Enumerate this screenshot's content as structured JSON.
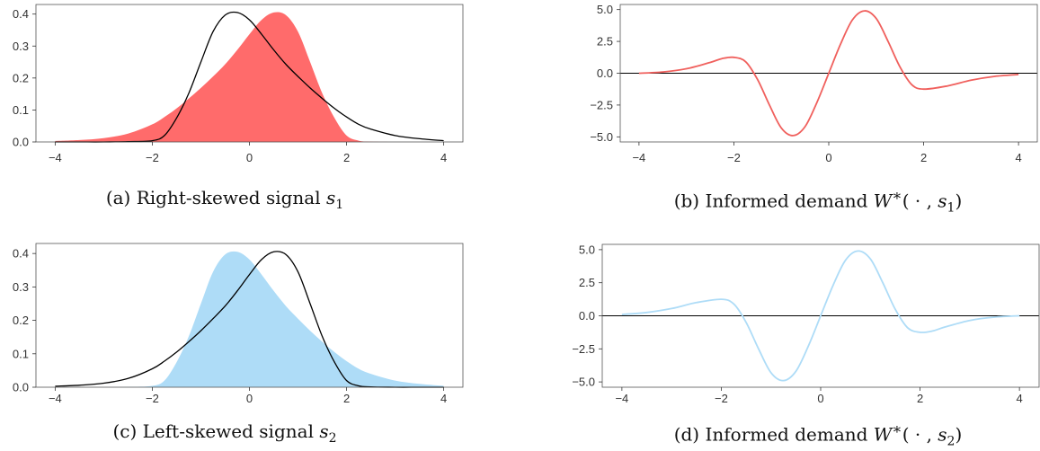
{
  "chart_data": [
    {
      "id": "a",
      "type": "area",
      "caption": {
        "label": "(a) Right-skewed signal",
        "var": "s",
        "sub": "1"
      },
      "xlim": [
        -4,
        4
      ],
      "ylim": [
        0,
        0.43
      ],
      "x_ticks": [
        -4,
        -2,
        0,
        2,
        4
      ],
      "x_tick_labels": [
        "−4",
        "−2",
        "0",
        "2",
        "4"
      ],
      "y_ticks": [
        0.0,
        0.1,
        0.2,
        0.3,
        0.4
      ],
      "y_tick_labels": [
        "0.0",
        "0.1",
        "0.2",
        "0.3",
        "0.4"
      ],
      "fill_color": "#ff6b6b",
      "line_color": "#000000",
      "x": [
        -4,
        -3.5,
        -3,
        -2.5,
        -2,
        -1.75,
        -1.5,
        -1.25,
        -1,
        -0.75,
        -0.5,
        -0.25,
        0,
        0.25,
        0.5,
        0.75,
        1,
        1.25,
        1.5,
        1.75,
        2,
        2.25,
        2.5,
        3,
        3.5,
        4
      ],
      "series": [
        {
          "style": "area",
          "values": [
            0.003,
            0.006,
            0.012,
            0.026,
            0.055,
            0.078,
            0.105,
            0.136,
            0.169,
            0.205,
            0.243,
            0.288,
            0.337,
            0.382,
            0.405,
            0.397,
            0.345,
            0.25,
            0.152,
            0.075,
            0.02,
            0.004,
            0.001,
            0,
            0,
            0
          ]
        },
        {
          "style": "line",
          "values": [
            0,
            0,
            0,
            0.001,
            0.004,
            0.02,
            0.075,
            0.152,
            0.25,
            0.345,
            0.397,
            0.405,
            0.382,
            0.337,
            0.288,
            0.243,
            0.205,
            0.169,
            0.136,
            0.105,
            0.078,
            0.055,
            0.04,
            0.02,
            0.01,
            0.004
          ]
        }
      ]
    },
    {
      "id": "b",
      "type": "line",
      "caption": {
        "label": "(b) Informed demand",
        "var": "W",
        "sup": "∗",
        "args": "( · , ",
        "var2": "s",
        "sub": "1",
        "close": ")"
      },
      "xlim": [
        -4,
        4
      ],
      "ylim": [
        -5.4,
        5.4
      ],
      "x_ticks": [
        -4,
        -2,
        0,
        2,
        4
      ],
      "x_tick_labels": [
        "−4",
        "−2",
        "0",
        "2",
        "4"
      ],
      "y_ticks": [
        -5,
        -2.5,
        0,
        2.5,
        5
      ],
      "y_tick_labels": [
        "−5.0",
        "−2.5",
        "0.0",
        "2.5",
        "5.0"
      ],
      "hline": 0,
      "line_color": "#f0605d",
      "x": [
        -4,
        -3.5,
        -3,
        -2.5,
        -2.25,
        -2,
        -1.75,
        -1.5,
        -1.25,
        -1,
        -0.75,
        -0.5,
        -0.25,
        0,
        0.25,
        0.5,
        0.75,
        1,
        1.25,
        1.5,
        1.75,
        2,
        2.5,
        3,
        3.5,
        4
      ],
      "values": [
        0,
        0.1,
        0.35,
        0.85,
        1.15,
        1.25,
        0.9,
        -0.5,
        -2.5,
        -4.3,
        -4.9,
        -4.2,
        -2.3,
        0,
        2.3,
        4.2,
        4.9,
        4.3,
        2.5,
        0.5,
        -0.9,
        -1.25,
        -1.0,
        -0.55,
        -0.25,
        -0.1
      ]
    },
    {
      "id": "c",
      "type": "area",
      "caption": {
        "label": "(c) Left-skewed signal",
        "var": "s",
        "sub": "2"
      },
      "xlim": [
        -4,
        4
      ],
      "ylim": [
        0,
        0.43
      ],
      "x_ticks": [
        -4,
        -2,
        0,
        2,
        4
      ],
      "x_tick_labels": [
        "−4",
        "−2",
        "0",
        "2",
        "4"
      ],
      "y_ticks": [
        0.0,
        0.1,
        0.2,
        0.3,
        0.4
      ],
      "y_tick_labels": [
        "0.0",
        "0.1",
        "0.2",
        "0.3",
        "0.4"
      ],
      "fill_color": "#aedcf7",
      "line_color": "#000000",
      "x": [
        -4,
        -3.5,
        -3,
        -2.5,
        -2,
        -1.75,
        -1.5,
        -1.25,
        -1,
        -0.75,
        -0.5,
        -0.25,
        0,
        0.25,
        0.5,
        0.75,
        1,
        1.25,
        1.5,
        1.75,
        2,
        2.25,
        2.5,
        3,
        3.5,
        4
      ],
      "series": [
        {
          "style": "area",
          "values": [
            0,
            0,
            0,
            0.001,
            0.004,
            0.02,
            0.075,
            0.152,
            0.25,
            0.345,
            0.397,
            0.405,
            0.382,
            0.337,
            0.288,
            0.243,
            0.205,
            0.169,
            0.136,
            0.105,
            0.078,
            0.055,
            0.04,
            0.02,
            0.01,
            0.004
          ]
        },
        {
          "style": "line",
          "values": [
            0.003,
            0.006,
            0.012,
            0.026,
            0.055,
            0.078,
            0.105,
            0.136,
            0.169,
            0.205,
            0.243,
            0.288,
            0.337,
            0.382,
            0.405,
            0.397,
            0.345,
            0.25,
            0.152,
            0.075,
            0.02,
            0.004,
            0.001,
            0,
            0,
            0
          ]
        }
      ]
    },
    {
      "id": "d",
      "type": "line",
      "caption": {
        "label": "(d) Informed demand",
        "var": "W",
        "sup": "∗",
        "args": "( · , ",
        "var2": "s",
        "sub": "2",
        "close": ")"
      },
      "xlim": [
        -4,
        4
      ],
      "ylim": [
        -5.4,
        5.4
      ],
      "x_ticks": [
        -4,
        -2,
        0,
        2,
        4
      ],
      "x_tick_labels": [
        "−4",
        "−2",
        "0",
        "2",
        "4"
      ],
      "y_ticks": [
        -5,
        -2.5,
        0,
        2.5,
        5
      ],
      "y_tick_labels": [
        "−5.0",
        "−2.5",
        "0.0",
        "2.5",
        "5.0"
      ],
      "hline": 0,
      "line_color": "#aedcf7",
      "x": [
        -4,
        -3.5,
        -3,
        -2.5,
        -2,
        -1.75,
        -1.5,
        -1.25,
        -1,
        -0.75,
        -0.5,
        -0.25,
        0,
        0.25,
        0.5,
        0.75,
        1,
        1.25,
        1.5,
        1.75,
        2,
        2.25,
        2.5,
        3,
        3.5,
        4
      ],
      "values": [
        0.1,
        0.25,
        0.55,
        1.0,
        1.25,
        0.9,
        -0.5,
        -2.5,
        -4.3,
        -4.9,
        -4.2,
        -2.3,
        0,
        2.3,
        4.2,
        4.9,
        4.3,
        2.5,
        0.5,
        -0.9,
        -1.25,
        -1.15,
        -0.85,
        -0.35,
        -0.1,
        0
      ]
    }
  ]
}
